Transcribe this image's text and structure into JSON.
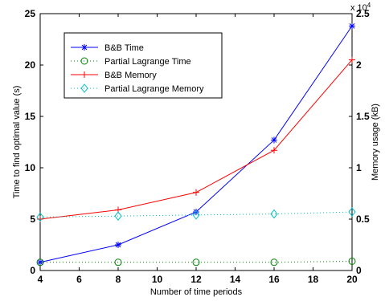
{
  "chart_data": {
    "type": "line",
    "title": "",
    "xlabel": "Number of time periods",
    "ylabel_left": "Time to find optimal value (s)",
    "ylabel_right": "Memory usage (kB)",
    "right_axis_multiplier": "x 10^4",
    "x": [
      4,
      8,
      12,
      16,
      20
    ],
    "xlim": [
      4,
      20
    ],
    "ylim_left": [
      0,
      25
    ],
    "ylim_right": [
      0,
      2.5
    ],
    "x_ticks": [
      "4",
      "6",
      "8",
      "10",
      "12",
      "14",
      "16",
      "18",
      "20"
    ],
    "y_left_ticks": [
      "0",
      "5",
      "10",
      "15",
      "20",
      "25"
    ],
    "y_right_ticks": [
      "0",
      "0.5",
      "1",
      "1.5",
      "2",
      "2.5"
    ],
    "grid": false,
    "legend_position": "top-left",
    "series": [
      {
        "name": "B&B Time",
        "axis": "left",
        "values": [
          0.8,
          2.5,
          5.7,
          12.7,
          23.8
        ],
        "color": "#0000ff",
        "line": "solid",
        "marker": "asterisk"
      },
      {
        "name": "Partial Lagrange Time",
        "axis": "left",
        "values": [
          0.8,
          0.8,
          0.8,
          0.8,
          0.9
        ],
        "color": "#008000",
        "line": "dotted",
        "marker": "circle"
      },
      {
        "name": "B&B Memory",
        "axis": "right",
        "values": [
          0.5,
          0.59,
          0.76,
          1.17,
          2.05
        ],
        "color": "#ff0000",
        "line": "solid",
        "marker": "plus"
      },
      {
        "name": "Partial Lagrange Memory",
        "axis": "right",
        "values": [
          0.52,
          0.53,
          0.54,
          0.55,
          0.57
        ],
        "color": "#00bfbf",
        "line": "dotted",
        "marker": "diamond"
      }
    ]
  }
}
